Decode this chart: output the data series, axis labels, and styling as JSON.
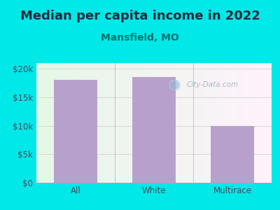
{
  "title": "Median per capita income in 2022",
  "subtitle": "Mansfield, MO",
  "categories": [
    "All",
    "White",
    "Multirace"
  ],
  "values": [
    18000,
    18500,
    10000
  ],
  "bar_color": "#b8a0cc",
  "background_color": "#00e8e8",
  "title_color": "#2a2a3a",
  "subtitle_color": "#007070",
  "tick_color": "#4a4a5a",
  "ylim": [
    0,
    21000
  ],
  "yticks": [
    0,
    5000,
    10000,
    15000,
    20000
  ],
  "ytick_labels": [
    "$0",
    "$5k",
    "$10k",
    "$15k",
    "$20k"
  ],
  "title_fontsize": 13,
  "subtitle_fontsize": 10,
  "tick_fontsize": 8.5,
  "watermark_text": "City-Data.com",
  "watermark_color": "#9ab0b8"
}
